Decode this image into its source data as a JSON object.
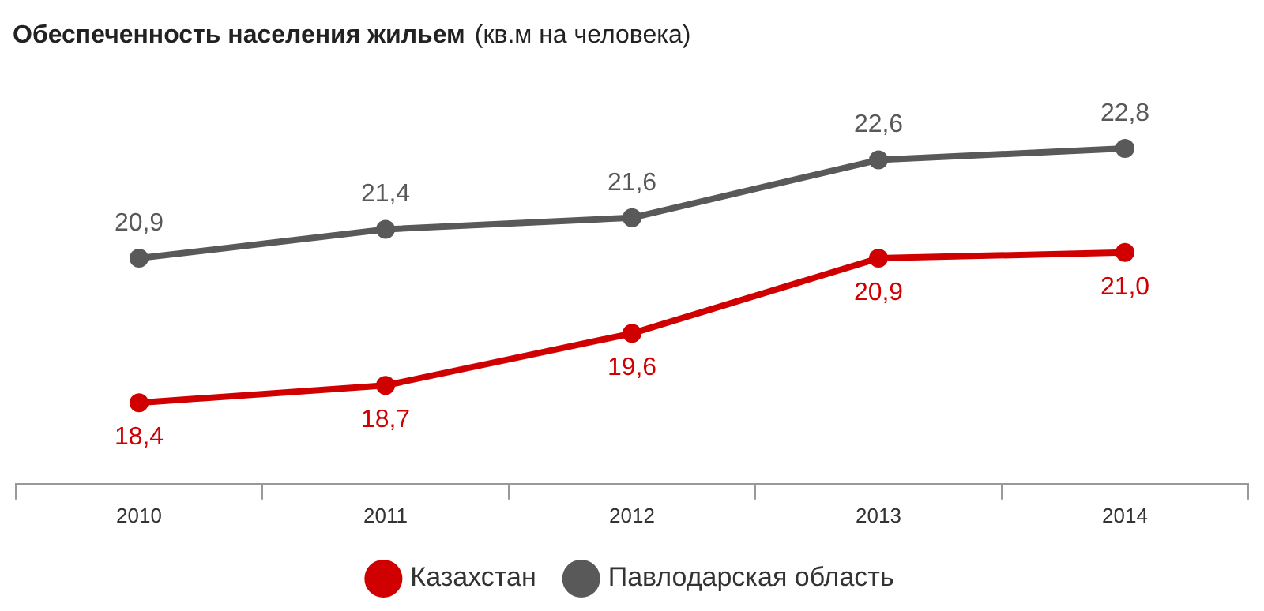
{
  "chart_data": {
    "type": "line",
    "title": "Обеспеченность населения жильем",
    "subtitle": "(кв.м на человека)",
    "categories": [
      "2010",
      "2011",
      "2012",
      "2013",
      "2014"
    ],
    "series": [
      {
        "name": "Казахстан",
        "color": "#d00000",
        "values": [
          18.4,
          18.7,
          19.6,
          20.9,
          21.0
        ],
        "value_labels": [
          "18,4",
          "18,7",
          "19,6",
          "20,9",
          "21,0"
        ]
      },
      {
        "name": "Павлодарская область",
        "color": "#595959",
        "values": [
          20.9,
          21.4,
          21.6,
          22.6,
          22.8
        ],
        "value_labels": [
          "20,9",
          "21,4",
          "21,6",
          "22,6",
          "22,8"
        ]
      }
    ],
    "legend": "bottom",
    "marker": "circle",
    "line_style": "solid",
    "grid": false
  }
}
